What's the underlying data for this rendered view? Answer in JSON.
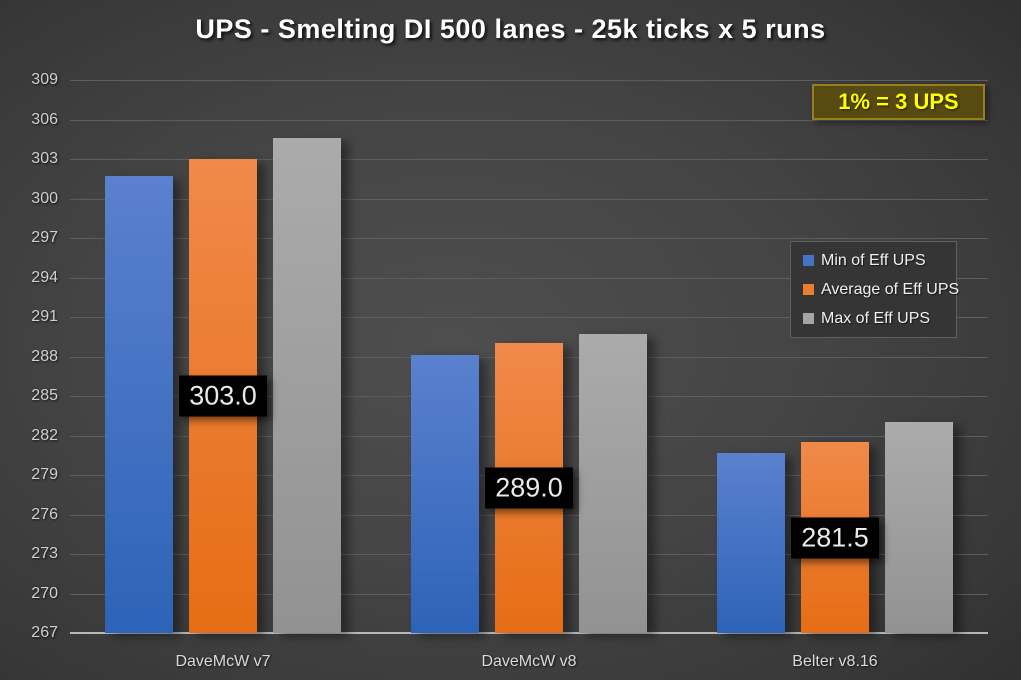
{
  "title": "UPS - Smelting DI 500 lanes - 25k ticks x 5 runs",
  "annotation": {
    "text": "1% = 3 UPS",
    "text_color": "#ffff00",
    "bg_color": "#594a11",
    "border_color": "#94801f"
  },
  "legend": {
    "position": "middle-right",
    "items": [
      {
        "label": "Min of Eff UPS",
        "color": "#4472c4"
      },
      {
        "label": "Average of Eff UPS",
        "color": "#ed7d31"
      },
      {
        "label": "Max of Eff UPS",
        "color": "#a5a5a5"
      }
    ]
  },
  "chart_data": {
    "type": "bar",
    "title": "UPS - Smelting DI 500 lanes - 25k ticks x 5 runs",
    "categories": [
      "DaveMcW v7",
      "DaveMcW v8",
      "Belter v8.16"
    ],
    "series": [
      {
        "name": "Min of Eff UPS",
        "values": [
          301.7,
          288.1,
          280.7
        ],
        "color_top": "#5b80ce",
        "color_bottom": "#2d63b8"
      },
      {
        "name": "Average of Eff UPS",
        "values": [
          303.0,
          289.0,
          281.5
        ],
        "color_top": "#f0894a",
        "color_bottom": "#e66d14"
      },
      {
        "name": "Max of Eff UPS",
        "values": [
          304.6,
          289.7,
          283.0
        ],
        "color_top": "#ababab",
        "color_bottom": "#929292"
      }
    ],
    "data_labels": {
      "series_name": "Average of Eff UPS",
      "series_index": 1,
      "values": [
        "303.0",
        "289.0",
        "281.5"
      ]
    },
    "xlabel": "",
    "ylabel": "",
    "ylim": [
      267,
      309
    ],
    "ytick_step": 3,
    "ytick_labels": [
      "267",
      "270",
      "273",
      "276",
      "279",
      "282",
      "285",
      "288",
      "291",
      "294",
      "297",
      "300",
      "303",
      "306",
      "309"
    ],
    "grid": "horizontal",
    "legend_position": "middle-right"
  }
}
